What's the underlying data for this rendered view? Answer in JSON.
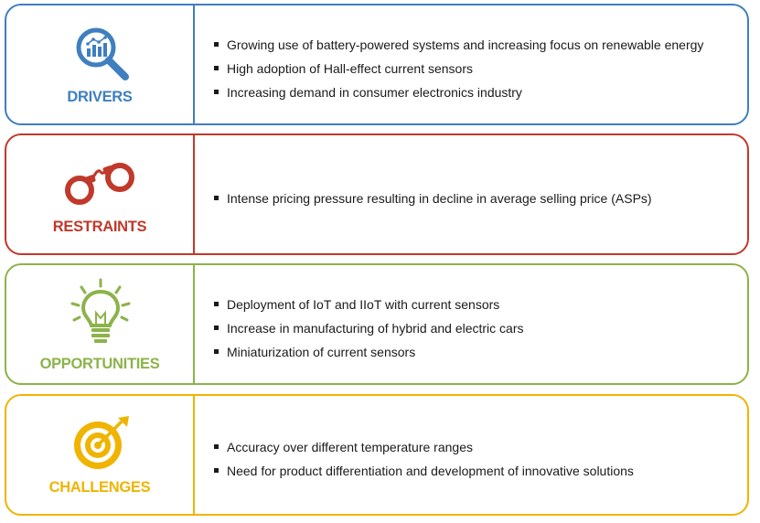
{
  "panels": [
    {
      "title": "DRIVERS",
      "color": "#3f7fbf",
      "icon": "magnifier-chart-icon",
      "items": [
        "Growing use of battery-powered systems and increasing focus on renewable energy",
        "High adoption of Hall-effect current sensors",
        "Increasing demand in consumer electronics industry"
      ]
    },
    {
      "title": "RESTRAINTS",
      "color": "#c0392b",
      "icon": "handcuffs-icon",
      "items": [
        "Intense pricing pressure resulting in decline in average selling price (ASPs)"
      ]
    },
    {
      "title": "OPPORTUNITIES",
      "color": "#8cb34a",
      "icon": "lightbulb-icon",
      "items": [
        "Deployment of IoT and IIoT with current sensors",
        "Increase in manufacturing of hybrid and electric cars",
        "Miniaturization of current sensors"
      ]
    },
    {
      "title": "CHALLENGES",
      "color": "#f0b400",
      "icon": "target-arrow-icon",
      "items": [
        "Accuracy over different temperature ranges",
        "Need for product differentiation and development of innovative solutions"
      ]
    }
  ]
}
